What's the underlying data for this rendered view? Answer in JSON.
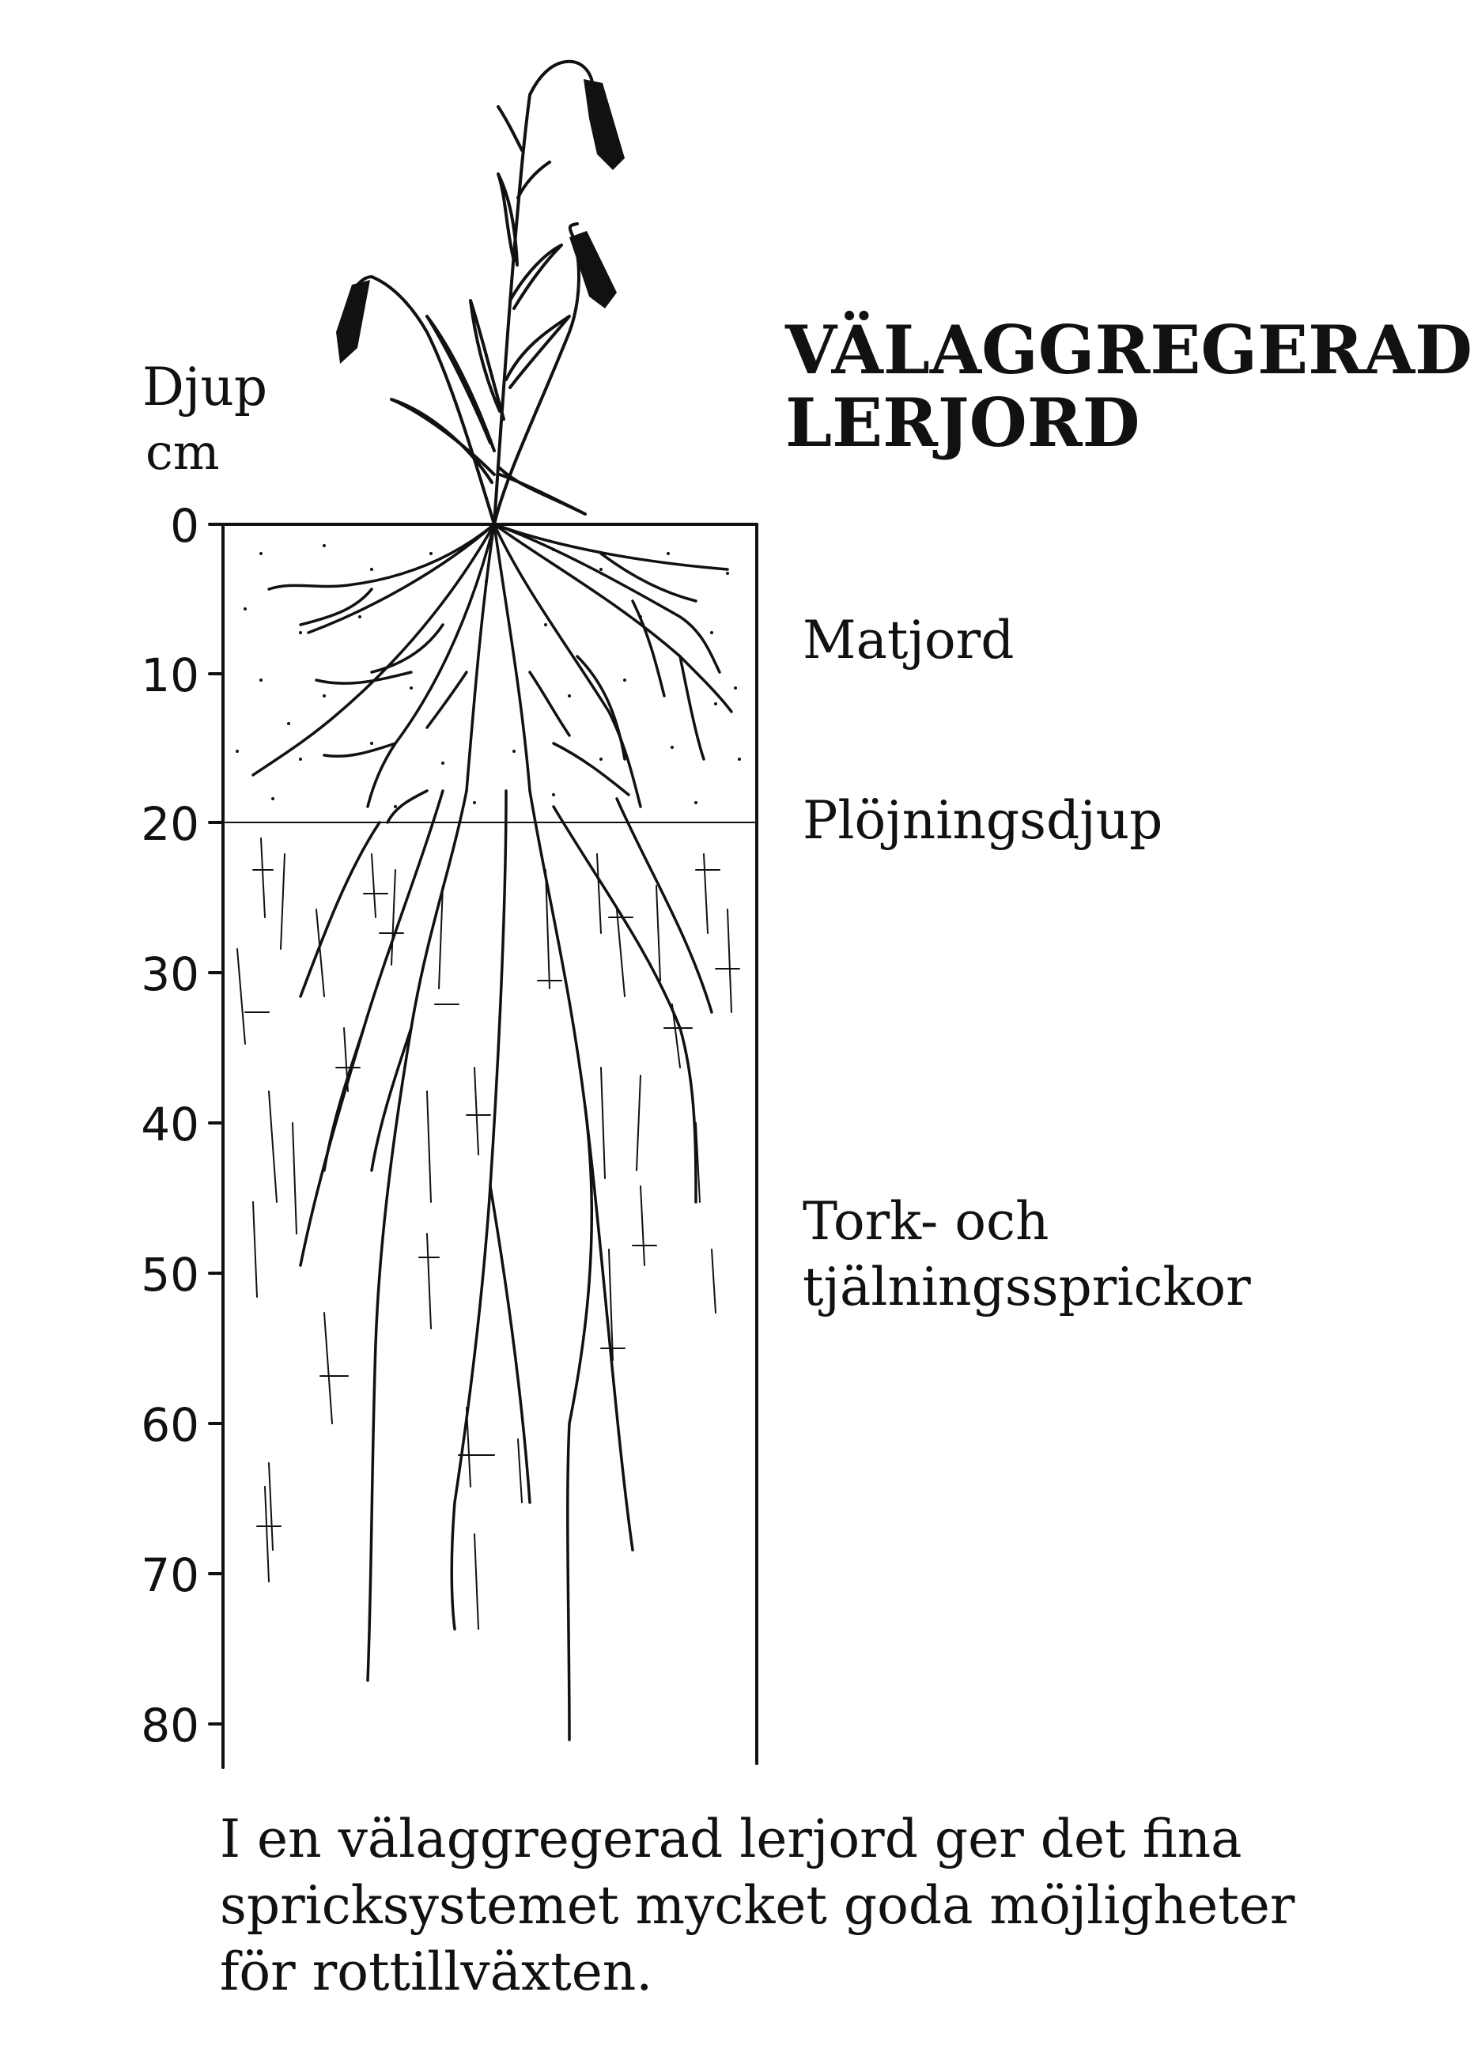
{
  "title": [
    "VÄLAGGREGERAD",
    "LERJORD"
  ],
  "axis": {
    "label": [
      "Djup",
      "cm"
    ],
    "ticks": [
      "0",
      "10",
      "20",
      "30",
      "40",
      "50",
      "60",
      "70",
      "80"
    ],
    "range": [
      0,
      80
    ],
    "unit": "cm"
  },
  "layers": [
    {
      "label": [
        "Matjord"
      ],
      "depth_cm": 10
    },
    {
      "label": [
        "Plöjningsdjup"
      ],
      "depth_cm": 20
    },
    {
      "label": [
        "Tork- och",
        "tjälningssprickor"
      ],
      "depth_cm": 50
    }
  ],
  "plow_depth_cm": 20,
  "caption": [
    "I en välaggregerad lerjord ger det fina",
    "spricksystemet mycket goda möjligheter",
    "för rottillväxten."
  ],
  "colors": {
    "ink": "#111111",
    "paper": "#ffffff"
  }
}
